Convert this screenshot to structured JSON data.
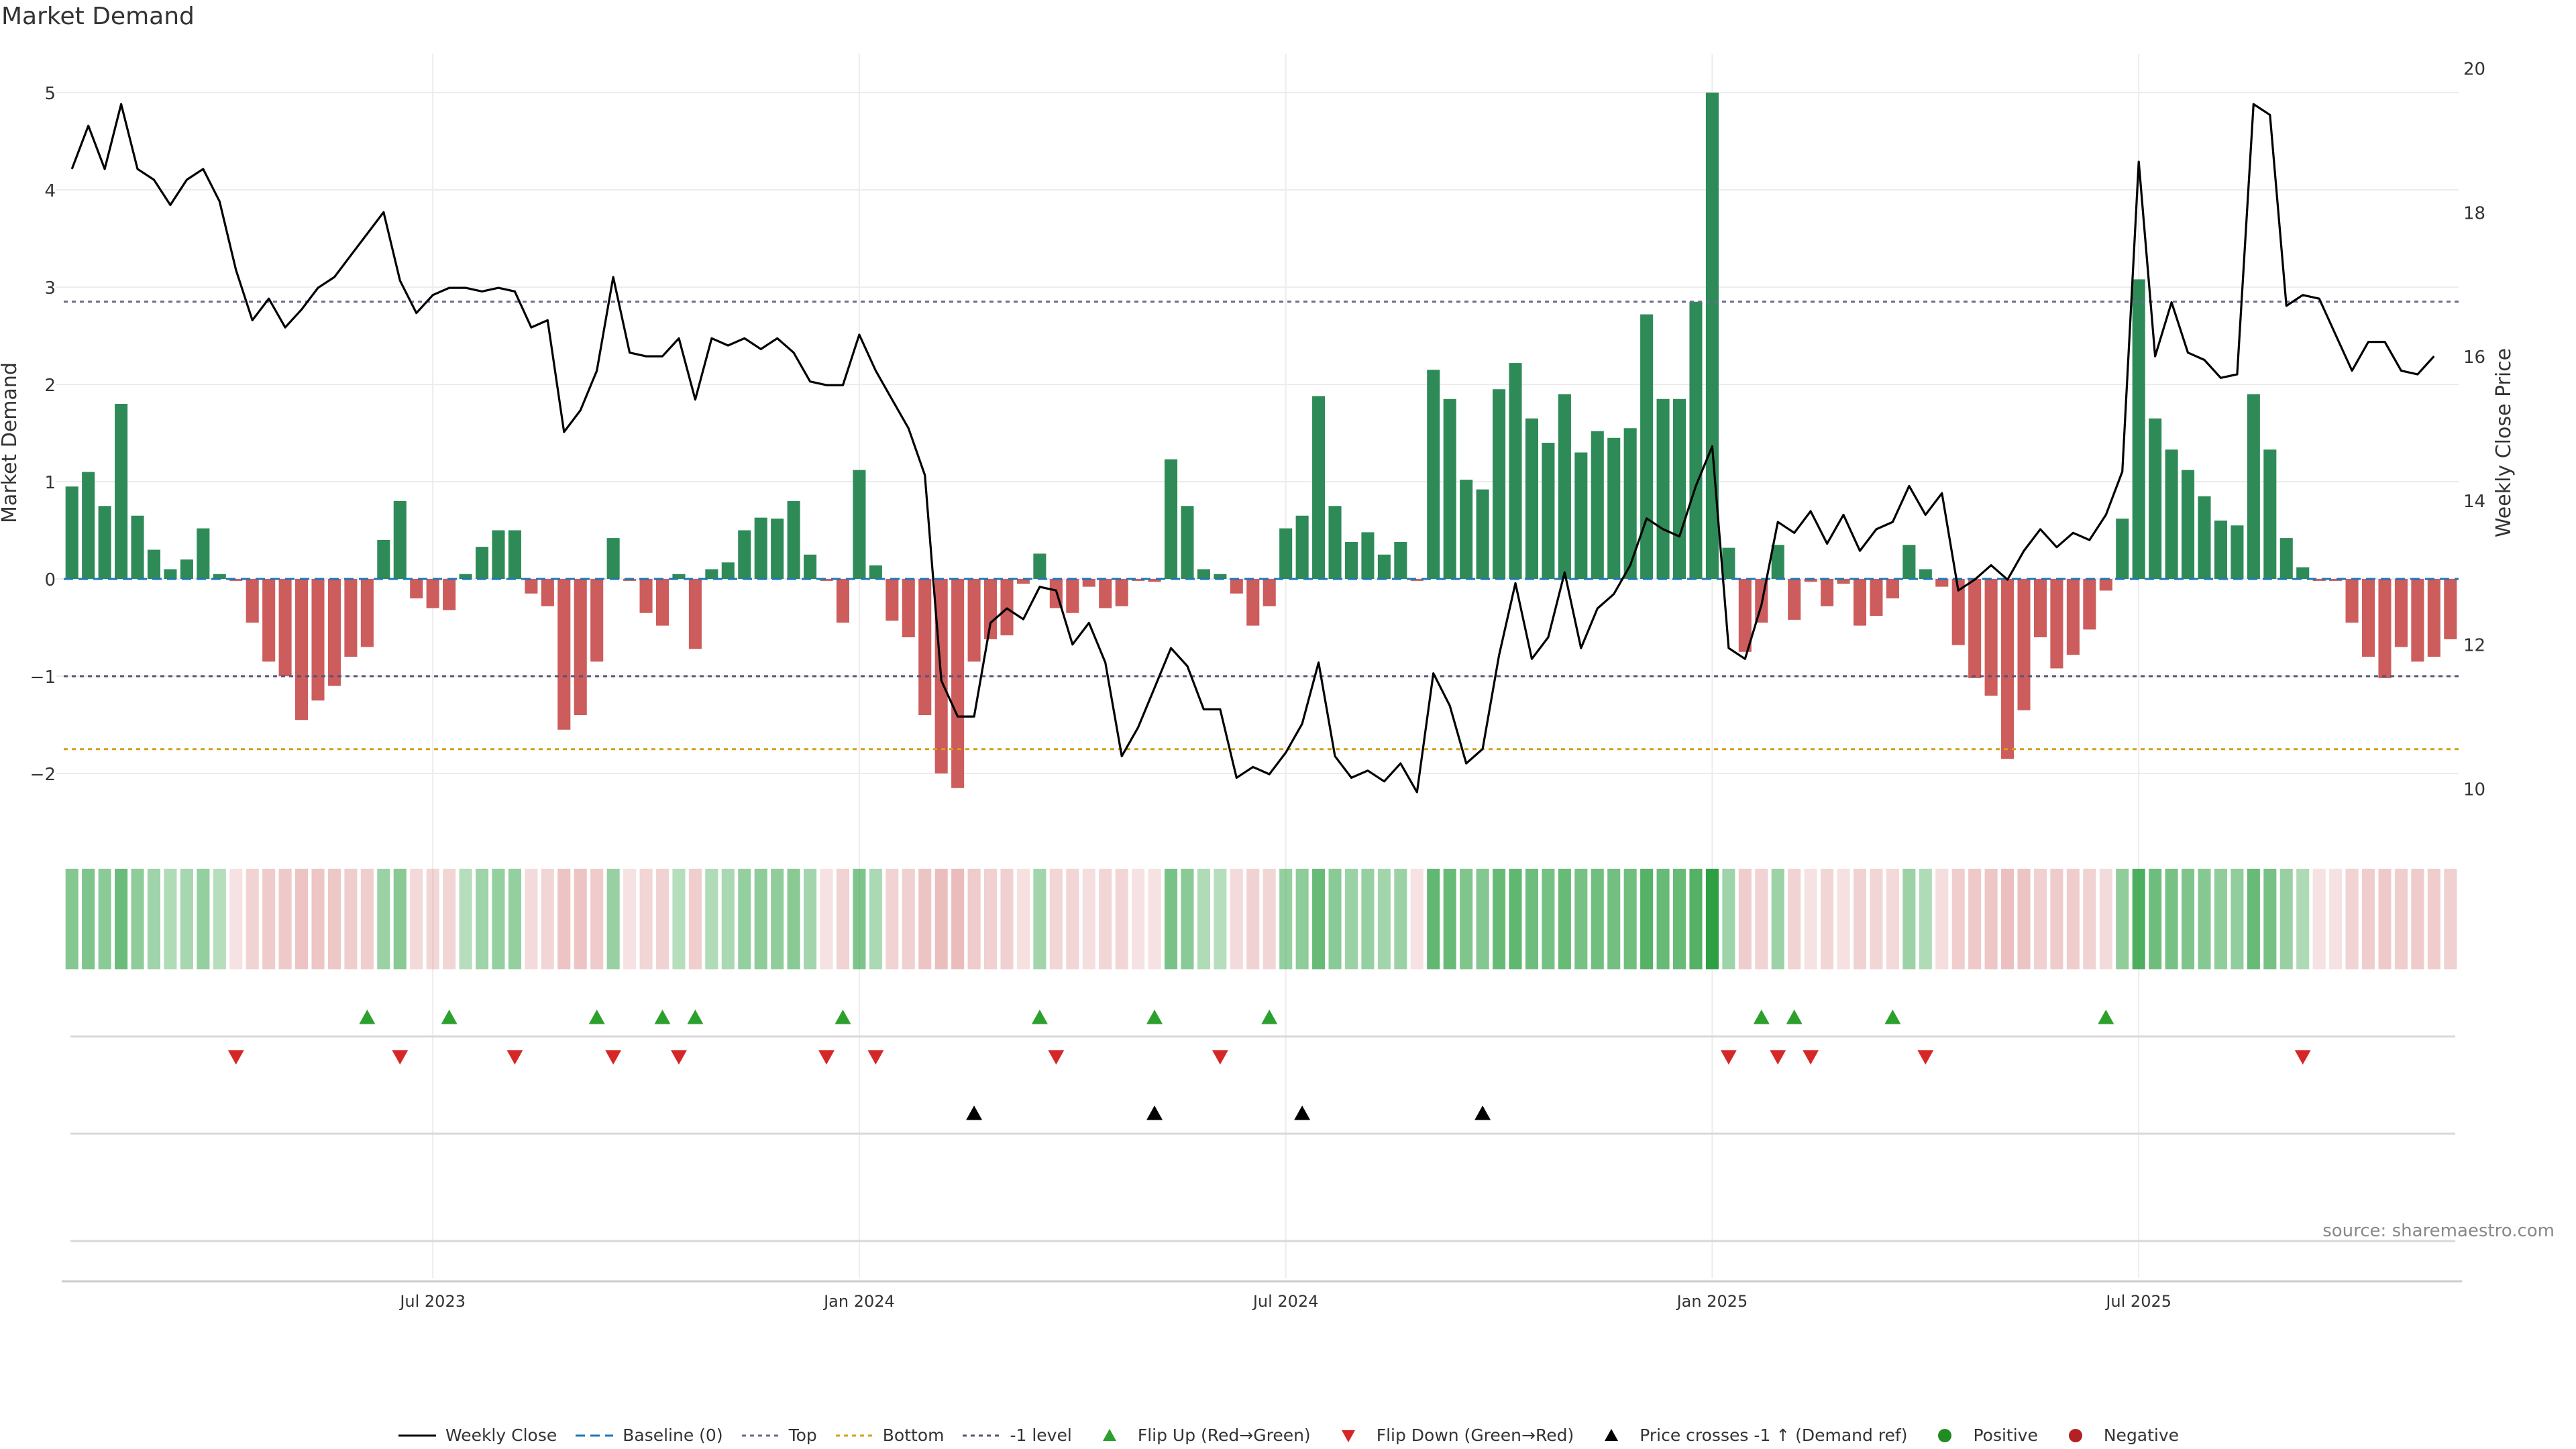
{
  "title": "Market Demand",
  "source": "source: sharemaestro.com",
  "colors": {
    "positive": "#2e8b57",
    "negative": "#cd5c5c",
    "price": "#000000",
    "baseline": "#1f77b4",
    "top": "#6b6b8a",
    "bottom": "#d4a017",
    "neg1": "#555577",
    "flip_up": "#2ca02c",
    "flip_down": "#d62728",
    "cross": "#000000",
    "pos_dot": "#228B22",
    "neg_dot": "#B22222"
  },
  "chart_data": {
    "type": "bar",
    "title": "Market Demand",
    "ylabel": "Market Demand",
    "y2label": "Weekly Close Price",
    "ylim": [
      -2.6,
      5.4
    ],
    "y2lim": [
      9.4,
      20.2
    ],
    "yticks": [
      "5",
      "4",
      "3",
      "2",
      "1",
      "0",
      "−1",
      "−2"
    ],
    "ytick_values": [
      5,
      4,
      3,
      2,
      1,
      0,
      -1,
      -2
    ],
    "y2ticks": [
      "20",
      "18",
      "16",
      "14",
      "12",
      "10"
    ],
    "y2tick_values": [
      20,
      18,
      16,
      14,
      12,
      10
    ],
    "top_level": 2.85,
    "bottom_level": -1.75,
    "neg1_level": -1.0,
    "x_ticks": [
      {
        "label": "Jul 2023",
        "index": 22
      },
      {
        "label": "Jan 2024",
        "index": 48
      },
      {
        "label": "Jul 2024",
        "index": 74
      },
      {
        "label": "Jan 2025",
        "index": 100
      },
      {
        "label": "Jul 2025",
        "index": 126
      }
    ],
    "demand": [
      0.95,
      1.1,
      0.75,
      1.8,
      0.65,
      0.3,
      0.1,
      0.2,
      0.52,
      0.05,
      -0.02,
      -0.45,
      -0.85,
      -1.0,
      -1.45,
      -1.25,
      -1.1,
      -0.8,
      -0.7,
      0.4,
      0.8,
      -0.2,
      -0.3,
      -0.32,
      0.05,
      0.33,
      0.5,
      0.5,
      -0.15,
      -0.28,
      -1.55,
      -1.4,
      -0.85,
      0.42,
      -0.02,
      -0.35,
      -0.48,
      0.05,
      -0.72,
      0.1,
      0.17,
      0.5,
      0.63,
      0.62,
      0.8,
      0.25,
      -0.02,
      -0.45,
      1.12,
      0.14,
      -0.43,
      -0.6,
      -1.4,
      -2.0,
      -2.15,
      -0.85,
      -0.62,
      -0.58,
      -0.05,
      0.26,
      -0.3,
      -0.35,
      -0.08,
      -0.3,
      -0.28,
      -0.02,
      -0.03,
      1.23,
      0.75,
      0.1,
      0.05,
      -0.15,
      -0.48,
      -0.28,
      0.52,
      0.65,
      1.88,
      0.75,
      0.38,
      0.48,
      0.25,
      0.38,
      -0.02,
      2.15,
      1.85,
      1.02,
      0.92,
      1.95,
      2.22,
      1.65,
      1.4,
      1.9,
      1.3,
      1.52,
      1.45,
      1.55,
      2.72,
      1.85,
      1.85,
      2.85,
      5.0,
      0.32,
      -0.75,
      -0.45,
      0.35,
      -0.42,
      -0.03,
      -0.28,
      -0.05,
      -0.48,
      -0.38,
      -0.2,
      0.35,
      0.1,
      -0.08,
      -0.68,
      -1.02,
      -1.2,
      -1.85,
      -1.35,
      -0.6,
      -0.92,
      -0.78,
      -0.52,
      -0.12,
      0.62,
      3.08,
      1.65,
      1.33,
      1.12,
      0.85,
      0.6,
      0.55,
      1.9,
      1.33,
      0.42,
      0.12,
      -0.02,
      -0.02,
      -0.45,
      -0.8,
      -1.02,
      -0.7,
      -0.85,
      -0.8,
      -0.62
    ],
    "price": [
      18.6,
      19.2,
      18.6,
      19.5,
      18.6,
      18.45,
      18.1,
      18.45,
      18.6,
      18.15,
      17.2,
      16.5,
      16.8,
      16.4,
      16.65,
      16.95,
      17.1,
      17.4,
      17.7,
      18.0,
      17.05,
      16.6,
      16.85,
      16.95,
      16.95,
      16.9,
      16.95,
      16.9,
      16.4,
      16.5,
      14.95,
      15.25,
      15.8,
      17.1,
      16.05,
      16.0,
      16.0,
      16.25,
      15.4,
      16.25,
      16.15,
      16.25,
      16.1,
      16.25,
      16.05,
      15.65,
      15.6,
      15.6,
      16.3,
      15.8,
      15.4,
      15.0,
      14.35,
      11.5,
      11.0,
      11.0,
      12.3,
      12.5,
      12.35,
      12.8,
      12.75,
      12.0,
      12.3,
      11.75,
      10.45,
      10.85,
      11.4,
      11.95,
      11.7,
      11.1,
      11.1,
      10.15,
      10.3,
      10.2,
      10.5,
      10.9,
      11.75,
      10.45,
      10.15,
      10.25,
      10.1,
      10.35,
      9.95,
      11.6,
      11.15,
      10.35,
      10.55,
      11.85,
      12.85,
      11.8,
      12.1,
      13.0,
      11.95,
      12.5,
      12.7,
      13.1,
      13.75,
      13.6,
      13.5,
      14.2,
      14.75,
      11.95,
      11.8,
      12.55,
      13.7,
      13.55,
      13.85,
      13.4,
      13.8,
      13.3,
      13.6,
      13.7,
      14.2,
      13.8,
      14.1,
      12.75,
      12.9,
      13.1,
      12.9,
      13.3,
      13.6,
      13.35,
      13.55,
      13.45,
      13.8,
      14.4,
      18.7,
      16.0,
      16.75,
      16.05,
      15.95,
      15.7,
      15.75,
      19.5,
      19.35,
      16.7,
      16.85,
      16.8,
      16.3,
      15.8,
      16.2,
      16.2,
      15.8,
      15.75,
      16.0
    ],
    "flip_up": [
      18,
      23,
      32,
      36,
      38,
      47,
      59,
      66,
      73,
      103,
      105,
      111,
      124
    ],
    "flip_down": [
      10,
      20,
      27,
      33,
      37,
      46,
      49,
      60,
      70,
      101,
      104,
      106,
      113,
      136
    ],
    "price_cross": [
      55,
      66,
      75,
      86
    ]
  },
  "legend": [
    {
      "key": "line",
      "label": "Weekly Close"
    },
    {
      "key": "baseline",
      "label": "Baseline (0)"
    },
    {
      "key": "top",
      "label": "Top"
    },
    {
      "key": "bottom",
      "label": "Bottom"
    },
    {
      "key": "neg1",
      "label": "-1 level"
    },
    {
      "key": "flip_up",
      "label": "Flip Up (Red→Green)"
    },
    {
      "key": "flip_down",
      "label": "Flip Down (Green→Red)"
    },
    {
      "key": "cross",
      "label": "Price crosses -1 ↑ (Demand ref)"
    },
    {
      "key": "pos",
      "label": "Positive"
    },
    {
      "key": "neg",
      "label": "Negative"
    }
  ]
}
